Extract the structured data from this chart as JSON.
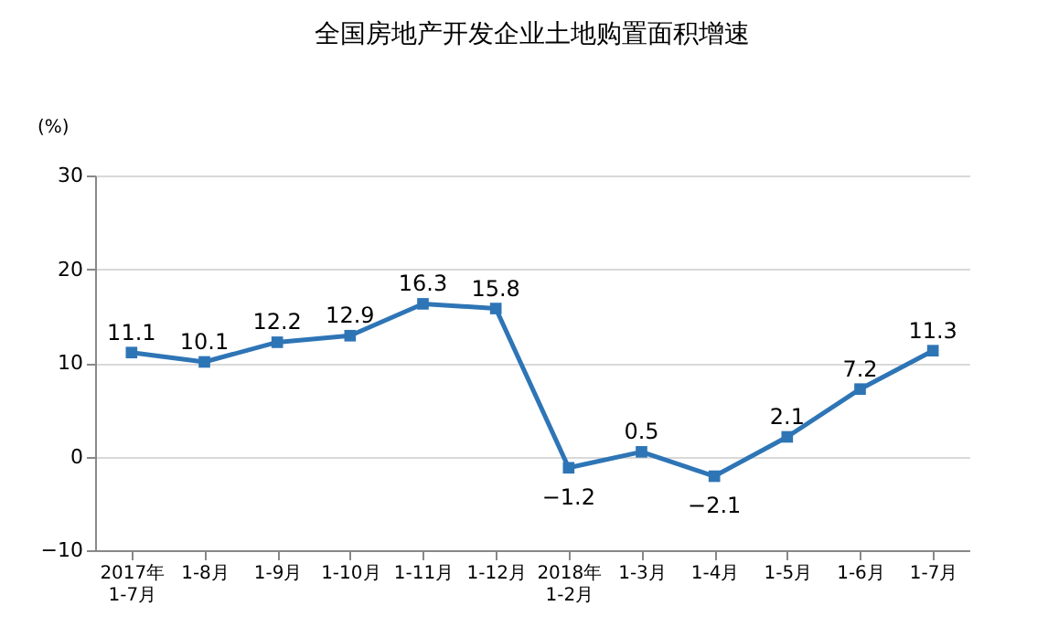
{
  "chart_data": {
    "type": "line",
    "title": "全国房地产开发企业土地购置面积增速",
    "ylabel": "(%)",
    "categories": [
      "2017年\n1-7月",
      "1-8月",
      "1-9月",
      "1-10月",
      "1-11月",
      "1-12月",
      "2018年\n1-2月",
      "1-3月",
      "1-4月",
      "1-5月",
      "1-6月",
      "1-7月"
    ],
    "series": [
      {
        "color": "#2e75b6",
        "values": [
          11.1,
          10.1,
          12.2,
          12.9,
          16.3,
          15.8,
          -1.2,
          0.5,
          -2.1,
          2.1,
          7.2,
          11.3
        ]
      }
    ],
    "ylim": [
      -10,
      30
    ],
    "yticks": [
      -10,
      0,
      10,
      20,
      30
    ],
    "grid": "y",
    "marker": "square",
    "line_style": "solid",
    "data_labels": true
  }
}
